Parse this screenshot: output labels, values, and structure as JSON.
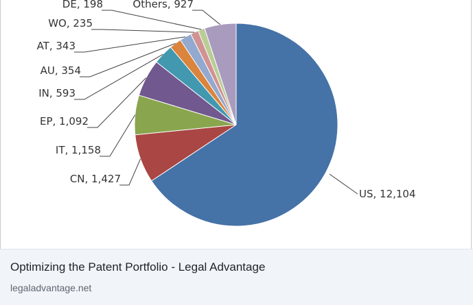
{
  "chart_data": {
    "type": "pie",
    "title": "",
    "legend": "none",
    "slices": [
      {
        "label": "US, 12,104",
        "value": 12104,
        "color": "#4572a7"
      },
      {
        "label": "CN, 1,427",
        "value": 1427,
        "color": "#aa4643"
      },
      {
        "label": "IT, 1,158",
        "value": 1158,
        "color": "#89a54e"
      },
      {
        "label": "EP, 1,092",
        "value": 1092,
        "color": "#71588f"
      },
      {
        "label": "IN, 593",
        "value": 593,
        "color": "#4198af"
      },
      {
        "label": "AU, 354",
        "value": 354,
        "color": "#db843d"
      },
      {
        "label": "AT, 343",
        "value": 343,
        "color": "#93a9cf"
      },
      {
        "label": "WO, 235",
        "value": 235,
        "color": "#d19392"
      },
      {
        "label": "DE, 198",
        "value": 198,
        "color": "#b9cd96"
      },
      {
        "label": "Others, 927",
        "value": 927,
        "color": "#a99bbd"
      }
    ]
  },
  "caption": {
    "title": "Optimizing the Patent Portfolio - Legal Advantage",
    "source": "legaladvantage.net"
  }
}
